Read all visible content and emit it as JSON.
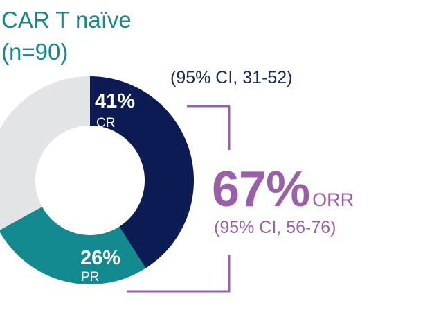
{
  "title": {
    "line1": "CAR T naïve",
    "line2": "(n=90)"
  },
  "chart_data": {
    "type": "pie",
    "variant": "donut",
    "segments": [
      {
        "category": "CR",
        "value": 41,
        "value_label": "41%",
        "color": "#0d1b55"
      },
      {
        "category": "PR",
        "value": 26,
        "value_label": "26%",
        "color": "#128a8f"
      },
      {
        "category": "",
        "value": 33,
        "value_label": "",
        "color": "#e3e4e6"
      }
    ],
    "cr_ci": "(95% CI, 31-52)",
    "orr": {
      "value_label": "67%",
      "label": "ORR",
      "ci": "(95% CI, 56-76)",
      "color": "#9b5ea8"
    }
  }
}
